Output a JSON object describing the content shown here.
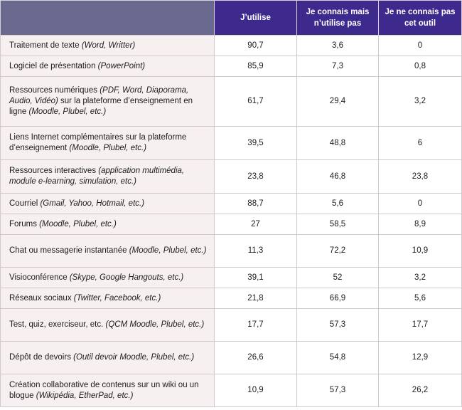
{
  "columns": {
    "col1": "J’utilise",
    "col2": "Je connais mais n’utilise pas",
    "col3": "Je ne connais pas cet outil"
  },
  "rows": [
    {
      "name": "Traitement de texte ",
      "detail": "(Word, Writter)",
      "tail": "",
      "v1": "90,7",
      "v2": "3,6",
      "v3": "0"
    },
    {
      "name": "Logiciel de présentation ",
      "detail": "(PowerPoint)",
      "tail": "",
      "v1": "85,9",
      "v2": "7,3",
      "v3": "0,8"
    },
    {
      "name": "Ressources numériques ",
      "detail": "(PDF, Word, Diaporama, Audio, Vidéo)",
      "tail": " sur la plateforme d’enseignement en ligne ",
      "detail2": "(Moodle, Plubel, etc.)",
      "v1": "61,7",
      "v2": "29,4",
      "v3": "3,2"
    },
    {
      "name": "Liens Internet complémentaires sur la plateforme d’enseignement ",
      "detail": "(Moodle, Plubel, etc.)",
      "tail": "",
      "v1": "39,5",
      "v2": "48,8",
      "v3": "6"
    },
    {
      "name": "Ressources interactives ",
      "detail": "(application multimédia, module e-learning, simulation, etc.)",
      "tail": "",
      "v1": "23,8",
      "v2": "46,8",
      "v3": "23,8"
    },
    {
      "name": "Courriel ",
      "detail": "(Gmail, Yahoo, Hotmail, etc.)",
      "tail": "",
      "v1": "88,7",
      "v2": "5,6",
      "v3": "0"
    },
    {
      "name": "Forums ",
      "detail": "(Moodle, Plubel, etc.)",
      "tail": "",
      "v1": "27",
      "v2": "58,5",
      "v3": "8,9"
    },
    {
      "name": "Chat ou messagerie instantanée ",
      "detail": "(Moodle, Plubel, etc.)",
      "tail": "",
      "v1": "11,3",
      "v2": "72,2",
      "v3": "10,9"
    },
    {
      "name": "Visioconférence ",
      "detail": "(Skype, Google Hangouts, etc.)",
      "tail": "",
      "v1": "39,1",
      "v2": "52",
      "v3": "3,2"
    },
    {
      "name": "Réseaux sociaux ",
      "detail": "(Twitter, Facebook, etc.)",
      "tail": "",
      "v1": "21,8",
      "v2": "66,9",
      "v3": "5,6"
    },
    {
      "name": "Test, quiz, exerciseur, etc. ",
      "detail": "(QCM Moodle, Plubel, etc.)",
      "tail": "",
      "v1": "17,7",
      "v2": "57,3",
      "v3": "17,7"
    },
    {
      "name": "Dépôt de devoirs ",
      "detail": "(Outil devoir Moodle, Plubel, etc.)",
      "tail": "",
      "v1": "26,6",
      "v2": "54,8",
      "v3": "12,9"
    },
    {
      "name": "Création collaborative de contenus sur un wiki ou un blogue ",
      "detail": "(Wikipédia, EtherPad, etc.)",
      "tail": "",
      "v1": "10,9",
      "v2": "57,3",
      "v3": "26,2"
    }
  ]
}
